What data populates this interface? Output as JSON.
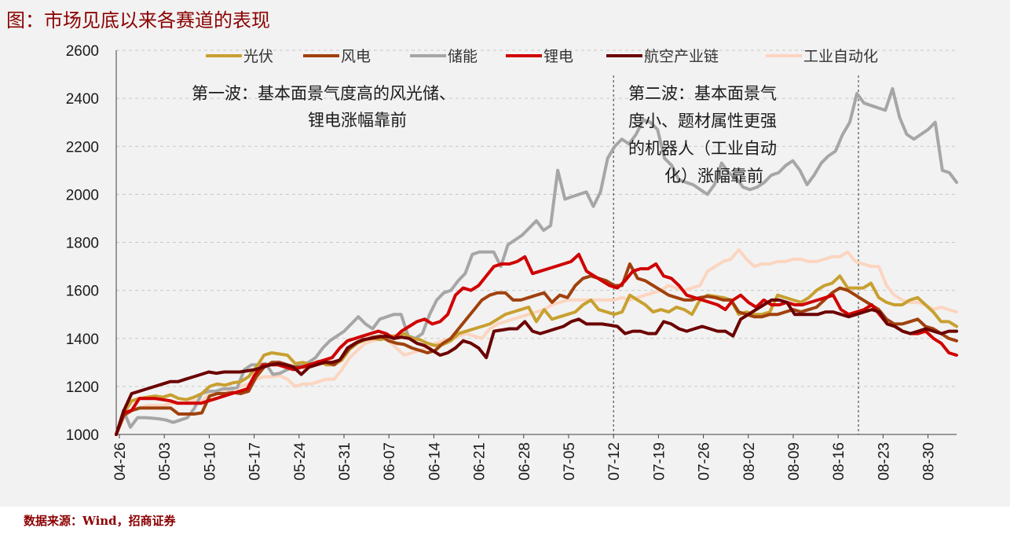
{
  "header": {
    "title": "图：市场见底以来各赛道的表现"
  },
  "footer": {
    "source": "数据来源：Wind，招商证券"
  },
  "chart_data": {
    "type": "line",
    "title": "图：市场见底以来各赛道的表现",
    "xlabel": "",
    "ylabel": "",
    "ylim": [
      1000,
      2600
    ],
    "yticks": [
      1000,
      1200,
      1400,
      1600,
      1800,
      2000,
      2200,
      2400,
      2600
    ],
    "x_tick_labels": [
      "04-26",
      "05-03",
      "05-10",
      "05-17",
      "05-24",
      "05-31",
      "06-07",
      "06-14",
      "06-21",
      "06-28",
      "07-05",
      "07-12",
      "07-19",
      "07-26",
      "08-02",
      "08-09",
      "08-16",
      "08-23",
      "08-30"
    ],
    "grid": "horizontal-dashed",
    "legend_position": "top",
    "annotations": [
      "第一波：基本面景气度高的风光储、",
      "锂电涨幅靠前",
      "第二波：基本面景气",
      "度小、题材属性更强",
      "的机器人（工业自动",
      "化）涨幅靠前"
    ],
    "vlines_at": [
      "07-12",
      "08-18"
    ],
    "series": [
      {
        "name": "光伏",
        "color": "#c8a030",
        "values": [
          1000,
          1090,
          1140,
          1150,
          1155,
          1160,
          1155,
          1165,
          1150,
          1145,
          1155,
          1170,
          1200,
          1210,
          1205,
          1215,
          1220,
          1240,
          1280,
          1330,
          1340,
          1335,
          1330,
          1295,
          1300,
          1290,
          1305,
          1290,
          1290,
          1310,
          1355,
          1380,
          1395,
          1400,
          1395,
          1410,
          1410,
          1420,
          1400,
          1395,
          1380,
          1370,
          1375,
          1390,
          1420,
          1430,
          1440,
          1450,
          1460,
          1480,
          1500,
          1510,
          1520,
          1530,
          1470,
          1520,
          1480,
          1490,
          1500,
          1510,
          1540,
          1560,
          1520,
          1510,
          1500,
          1510,
          1580,
          1560,
          1540,
          1510,
          1520,
          1510,
          1530,
          1520,
          1500,
          1560,
          1580,
          1575,
          1570,
          1560,
          1500,
          1510,
          1500,
          1500,
          1510,
          1580,
          1570,
          1560,
          1550,
          1570,
          1600,
          1620,
          1630,
          1660,
          1610,
          1610,
          1610,
          1630,
          1570,
          1550,
          1540,
          1540,
          1560,
          1570,
          1540,
          1510,
          1470,
          1470,
          1450
        ]
      },
      {
        "name": "风电",
        "color": "#a0410d",
        "values": [
          1000,
          1080,
          1100,
          1110,
          1110,
          1110,
          1110,
          1110,
          1085,
          1085,
          1085,
          1090,
          1160,
          1170,
          1170,
          1175,
          1170,
          1180,
          1240,
          1280,
          1300,
          1300,
          1290,
          1280,
          1280,
          1290,
          1300,
          1300,
          1290,
          1320,
          1360,
          1385,
          1395,
          1405,
          1410,
          1390,
          1380,
          1375,
          1360,
          1350,
          1340,
          1350,
          1380,
          1400,
          1440,
          1480,
          1520,
          1560,
          1580,
          1590,
          1590,
          1560,
          1560,
          1570,
          1580,
          1590,
          1550,
          1580,
          1570,
          1620,
          1650,
          1660,
          1650,
          1640,
          1620,
          1620,
          1710,
          1650,
          1640,
          1620,
          1600,
          1580,
          1570,
          1560,
          1560,
          1570,
          1575,
          1570,
          1560,
          1560,
          1510,
          1500,
          1490,
          1490,
          1500,
          1500,
          1510,
          1520,
          1510,
          1520,
          1530,
          1560,
          1590,
          1610,
          1600,
          1580,
          1560,
          1540,
          1520,
          1480,
          1460,
          1460,
          1470,
          1480,
          1450,
          1440,
          1420,
          1400,
          1390
        ]
      },
      {
        "name": "储能",
        "color": "#a6a6a6",
        "values": [
          1000,
          1100,
          1030,
          1070,
          1070,
          1068,
          1065,
          1060,
          1050,
          1060,
          1070,
          1110,
          1170,
          1180,
          1180,
          1190,
          1190,
          1195,
          1270,
          1290,
          1290,
          1295,
          1250,
          1255,
          1270,
          1280,
          1290,
          1300,
          1320,
          1360,
          1390,
          1410,
          1430,
          1460,
          1490,
          1460,
          1440,
          1480,
          1490,
          1500,
          1500,
          1410,
          1400,
          1420,
          1500,
          1560,
          1590,
          1600,
          1640,
          1670,
          1750,
          1760,
          1760,
          1760,
          1700,
          1790,
          1810,
          1830,
          1860,
          1890,
          1850,
          1870,
          2100,
          1980,
          1990,
          2000,
          2010,
          1950,
          2010,
          2150,
          2200,
          2230,
          2210,
          2250,
          2310,
          2300,
          2270,
          2150,
          2120,
          2060,
          2050,
          2040,
          2020,
          2000,
          2040,
          2130,
          2090,
          2070,
          2030,
          2020,
          2030,
          2050,
          2080,
          2090,
          2120,
          2140,
          2100,
          2040,
          2080,
          2130,
          2160,
          2180,
          2250,
          2300,
          2420,
          2380,
          2370,
          2360,
          2350,
          2440,
          2320,
          2250,
          2230,
          2250,
          2270,
          2300,
          2100,
          2090,
          2050
        ]
      },
      {
        "name": "锂电",
        "color": "#d00000",
        "values": [
          1000,
          1090,
          1100,
          1150,
          1150,
          1150,
          1145,
          1140,
          1130,
          1130,
          1130,
          1130,
          1140,
          1150,
          1160,
          1170,
          1180,
          1190,
          1250,
          1290,
          1290,
          1290,
          1280,
          1270,
          1280,
          1290,
          1300,
          1310,
          1320,
          1360,
          1390,
          1400,
          1410,
          1420,
          1430,
          1420,
          1400,
          1430,
          1450,
          1470,
          1480,
          1460,
          1470,
          1500,
          1580,
          1610,
          1600,
          1620,
          1660,
          1700,
          1710,
          1710,
          1720,
          1740,
          1670,
          1680,
          1690,
          1700,
          1710,
          1720,
          1750,
          1680,
          1660,
          1640,
          1620,
          1610,
          1640,
          1680,
          1690,
          1690,
          1710,
          1660,
          1650,
          1620,
          1580,
          1570,
          1560,
          1550,
          1540,
          1520,
          1560,
          1580,
          1550,
          1530,
          1560,
          1540,
          1540,
          1550,
          1540,
          1540,
          1550,
          1560,
          1570,
          1580,
          1520,
          1500,
          1510,
          1520,
          1540,
          1500,
          1460,
          1450,
          1430,
          1420,
          1420,
          1430,
          1400,
          1380,
          1340,
          1330
        ]
      },
      {
        "name": "航空产业链",
        "color": "#6b0000",
        "values": [
          1000,
          1100,
          1170,
          1180,
          1190,
          1200,
          1210,
          1220,
          1220,
          1230,
          1240,
          1250,
          1260,
          1255,
          1260,
          1260,
          1260,
          1265,
          1270,
          1280,
          1290,
          1295,
          1290,
          1280,
          1250,
          1280,
          1290,
          1300,
          1300,
          1310,
          1360,
          1380,
          1395,
          1400,
          1405,
          1410,
          1400,
          1405,
          1400,
          1380,
          1370,
          1350,
          1330,
          1340,
          1360,
          1390,
          1380,
          1360,
          1320,
          1430,
          1435,
          1440,
          1440,
          1470,
          1430,
          1420,
          1430,
          1440,
          1450,
          1470,
          1480,
          1460,
          1460,
          1460,
          1455,
          1450,
          1420,
          1430,
          1430,
          1420,
          1420,
          1470,
          1460,
          1440,
          1430,
          1440,
          1450,
          1440,
          1430,
          1430,
          1410,
          1480,
          1500,
          1520,
          1540,
          1560,
          1560,
          1550,
          1500,
          1500,
          1500,
          1500,
          1510,
          1510,
          1500,
          1490,
          1500,
          1510,
          1520,
          1510,
          1460,
          1450,
          1430,
          1420,
          1430,
          1440,
          1430,
          1420,
          1430,
          1430
        ]
      },
      {
        "name": "工业自动化",
        "color": "#fcd5c0",
        "values": [
          1000,
          1080,
          1100,
          1110,
          1120,
          1120,
          1120,
          1130,
          1130,
          1130,
          1140,
          1140,
          1170,
          1180,
          1185,
          1190,
          1200,
          1210,
          1230,
          1240,
          1240,
          1245,
          1230,
          1200,
          1210,
          1210,
          1220,
          1230,
          1230,
          1270,
          1320,
          1350,
          1380,
          1390,
          1400,
          1390,
          1360,
          1330,
          1340,
          1350,
          1360,
          1380,
          1390,
          1400,
          1410,
          1420,
          1410,
          1400,
          1440,
          1460,
          1470,
          1480,
          1490,
          1500,
          1510,
          1520,
          1540,
          1550,
          1560,
          1560,
          1560,
          1560,
          1560,
          1560,
          1560,
          1570,
          1560,
          1570,
          1580,
          1590,
          1600,
          1620,
          1610,
          1600,
          1610,
          1620,
          1680,
          1700,
          1720,
          1730,
          1770,
          1730,
          1700,
          1710,
          1710,
          1720,
          1720,
          1730,
          1730,
          1720,
          1720,
          1730,
          1740,
          1740,
          1760,
          1720,
          1710,
          1700,
          1700,
          1620,
          1580,
          1560,
          1550,
          1550,
          1540,
          1520,
          1530,
          1520,
          1510
        ]
      }
    ]
  }
}
